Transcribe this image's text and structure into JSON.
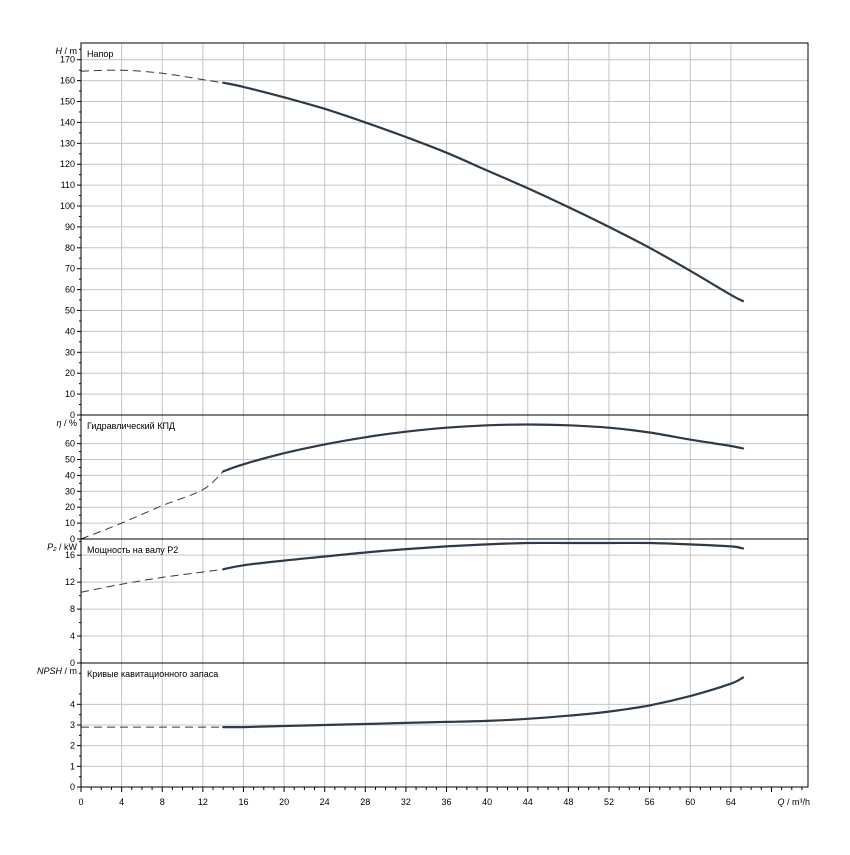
{
  "chart_data": [
    {
      "type": "line",
      "title": "Напор",
      "ylabel_main": "H",
      "ylabel_unit": "m",
      "ylim": [
        0,
        178
      ],
      "yticks": [
        0,
        10,
        20,
        30,
        40,
        50,
        60,
        70,
        80,
        90,
        100,
        110,
        120,
        130,
        140,
        150,
        160,
        170
      ],
      "x": [
        0,
        4,
        8,
        12,
        14,
        16,
        20,
        24,
        28,
        32,
        36,
        40,
        44,
        48,
        52,
        56,
        60,
        64,
        65.2
      ],
      "y": [
        164.5,
        165,
        163.5,
        160.5,
        159,
        157,
        152,
        146.5,
        140,
        133,
        125.5,
        117,
        108.5,
        99.5,
        90,
        80,
        69,
        57.5,
        54.5
      ],
      "dashed_until_x": 14
    },
    {
      "type": "line",
      "title": "Гидравлический КПД",
      "ylabel_main": "η",
      "ylabel_unit": "%",
      "ylim": [
        0,
        78
      ],
      "yticks": [
        0,
        10,
        20,
        30,
        40,
        50,
        60
      ],
      "x": [
        0,
        4,
        8,
        12,
        14,
        16,
        20,
        24,
        28,
        32,
        36,
        40,
        44,
        48,
        52,
        56,
        60,
        64,
        65.2
      ],
      "y": [
        0,
        10,
        21,
        31,
        42.5,
        47,
        54,
        59.5,
        64,
        67.5,
        70,
        71.5,
        72,
        71.5,
        70,
        67,
        62.5,
        58.5,
        57
      ],
      "dashed_until_x": 14
    },
    {
      "type": "line",
      "title": "Мощность на валу P2",
      "ylabel_main": "P₂",
      "ylabel_unit": "kW",
      "ylim": [
        0,
        18.4
      ],
      "yticks": [
        0,
        4,
        8,
        12,
        16
      ],
      "x": [
        0,
        4,
        8,
        12,
        14,
        16,
        20,
        24,
        28,
        32,
        36,
        40,
        44,
        48,
        52,
        56,
        60,
        64,
        65.2
      ],
      "y": [
        10.5,
        11.7,
        12.7,
        13.5,
        13.9,
        14.5,
        15.2,
        15.8,
        16.4,
        16.9,
        17.3,
        17.6,
        17.8,
        17.8,
        17.8,
        17.8,
        17.6,
        17.3,
        17.0
      ],
      "dashed_until_x": 14
    },
    {
      "type": "line",
      "title": "Кривые кавитационного запаса",
      "ylabel_main": "NPSH",
      "ylabel_unit": "m",
      "ylim": [
        0,
        6
      ],
      "yticks": [
        0,
        1,
        2,
        3,
        4
      ],
      "x": [
        0,
        4,
        8,
        12,
        14,
        16,
        20,
        24,
        28,
        32,
        36,
        40,
        44,
        48,
        52,
        56,
        60,
        64,
        65.2
      ],
      "y": [
        2.9,
        2.9,
        2.9,
        2.9,
        2.9,
        2.9,
        2.95,
        3.0,
        3.05,
        3.1,
        3.15,
        3.2,
        3.3,
        3.45,
        3.65,
        3.95,
        4.4,
        5.0,
        5.3
      ],
      "dashed_until_x": 14
    }
  ],
  "x_axis": {
    "label": "Q / m³/h",
    "xlim": [
      0,
      71.6
    ],
    "ticks": [
      0,
      4,
      8,
      12,
      16,
      20,
      24,
      28,
      32,
      36,
      40,
      44,
      48,
      52,
      56,
      60,
      64
    ],
    "minor_step": 1
  },
  "colors": {
    "curve": "#2d3a48",
    "grid": "#c4c4c4",
    "frame": "#000000"
  }
}
